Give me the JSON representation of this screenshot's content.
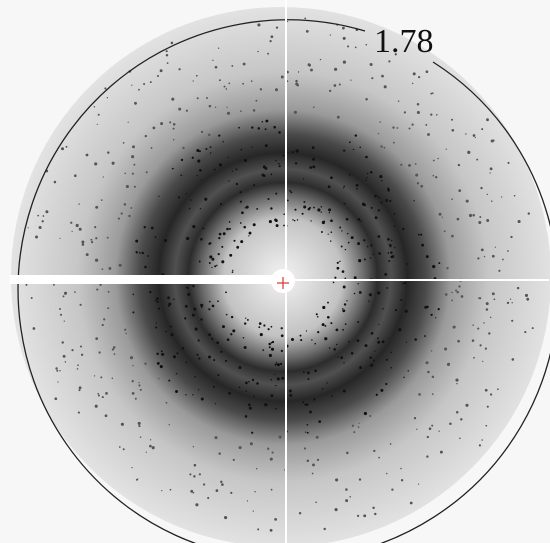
{
  "resolution_label": "1.78"
}
